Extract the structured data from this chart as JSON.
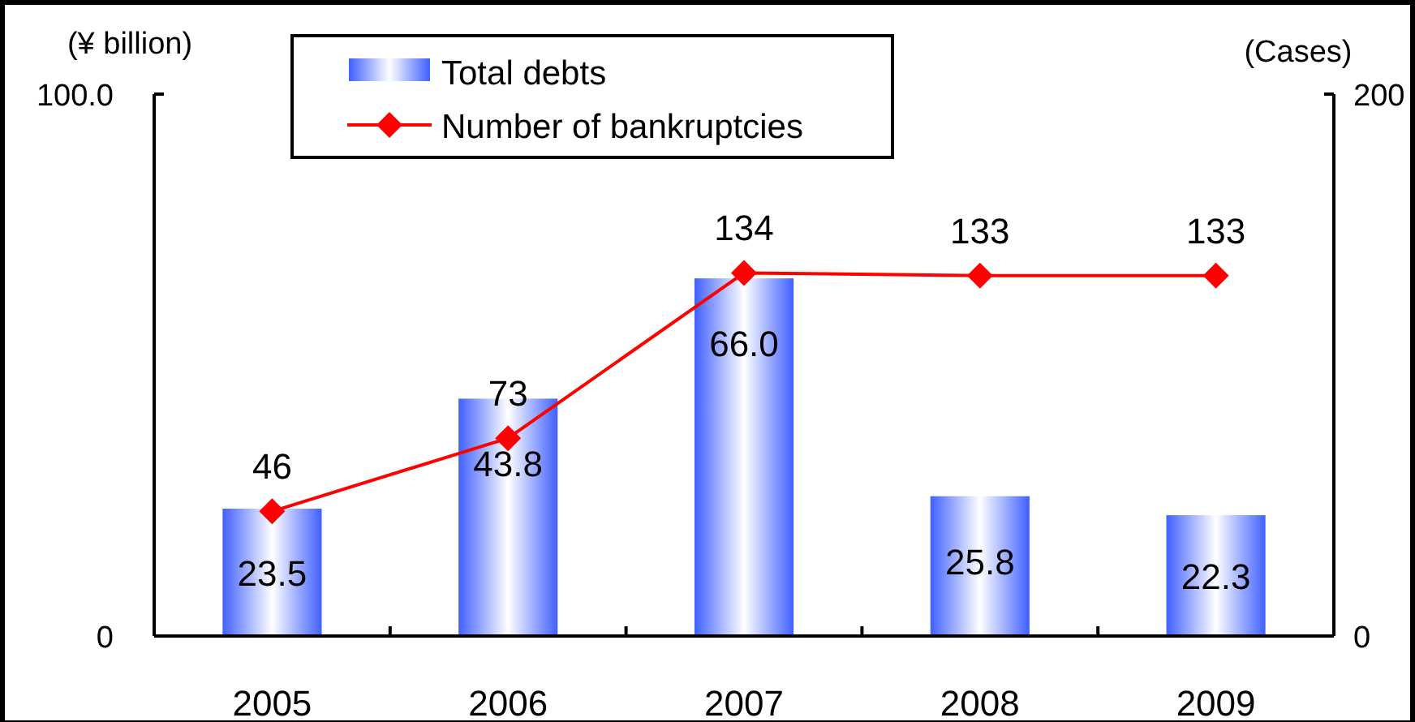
{
  "chart_data": {
    "type": "bar",
    "categories": [
      "2005",
      "2006",
      "2007",
      "2008",
      "2009"
    ],
    "ylabel": "(¥ billion)",
    "y2label": "(Cases)",
    "ylim": [
      0,
      100
    ],
    "yticks": [
      0,
      {
        "value": 100,
        "label": "100.0"
      }
    ],
    "y2lim": [
      0,
      200
    ],
    "y2ticks": [
      0,
      200
    ],
    "series": [
      {
        "name": "Total debts",
        "color": "#4060ff",
        "values": [
          23.5,
          43.8,
          66.0,
          25.8,
          22.3
        ],
        "value_labels": [
          "23.5",
          "43.8",
          "66.0",
          "25.8",
          "22.3"
        ]
      },
      {
        "name": "Number of bankruptcies",
        "type": "line",
        "axis": "y2",
        "color": "#ff0000",
        "marker": "diamond",
        "values": [
          46,
          73,
          134,
          133,
          133
        ],
        "value_labels": [
          "46",
          "73",
          "134",
          "133",
          "133"
        ]
      }
    ],
    "legend": "top",
    "grid": false
  }
}
